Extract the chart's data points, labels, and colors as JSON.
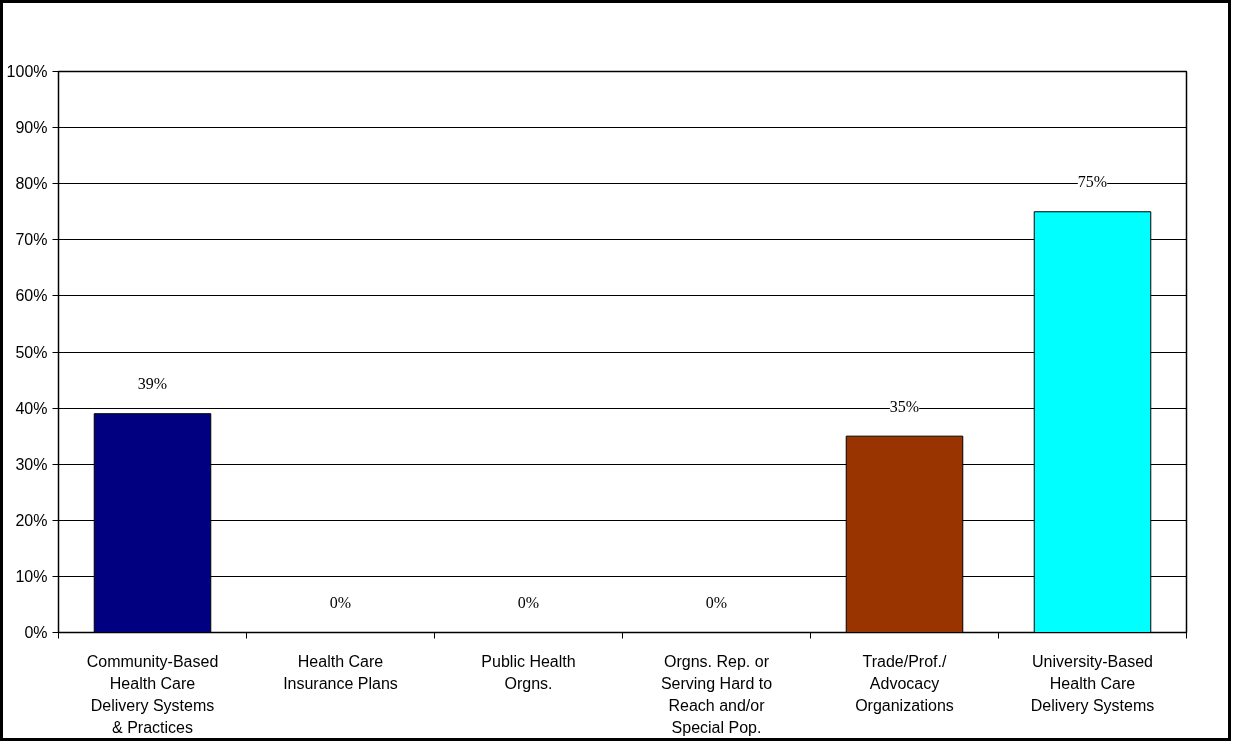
{
  "chart_data": {
    "type": "bar",
    "categories": [
      "Community-Based Health Care Delivery Systems & Practices",
      "Health Care Insurance Plans",
      "Public Health Orgns.",
      "Orgns. Rep. or Serving Hard to Reach and/or Special Pop.",
      "Trade/Prof./ Advocacy Organizations",
      "University-Based Health Care Delivery Systems"
    ],
    "values": [
      39,
      0,
      0,
      0,
      35,
      75
    ],
    "colors": [
      "#000080",
      null,
      null,
      null,
      "#993300",
      "#00ffff"
    ],
    "value_labels": [
      "39%",
      "0%",
      "0%",
      "0%",
      "35%",
      "75%"
    ],
    "ylim": [
      0,
      100
    ],
    "yticks": [
      {
        "value": 0,
        "label": "0%"
      },
      {
        "value": 10,
        "label": "10%"
      },
      {
        "value": 20,
        "label": "20%"
      },
      {
        "value": 30,
        "label": "30%"
      },
      {
        "value": 40,
        "label": "40%"
      },
      {
        "value": 50,
        "label": "50%"
      },
      {
        "value": 60,
        "label": "60%"
      },
      {
        "value": 70,
        "label": "70%"
      },
      {
        "value": 80,
        "label": "80%"
      },
      {
        "value": 90,
        "label": "90%"
      },
      {
        "value": 100,
        "label": "100%"
      }
    ],
    "grid": "y"
  }
}
